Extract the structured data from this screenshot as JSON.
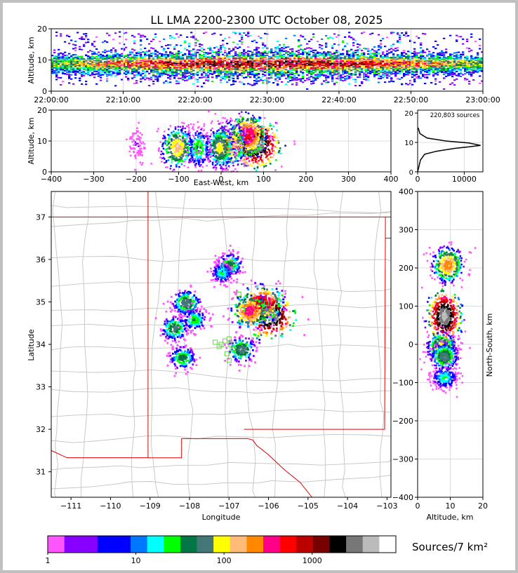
{
  "title": "LL LMA 2200-2300 UTC October 08, 2025",
  "time_panel": {
    "ylabel": "Altitude, km",
    "yticks": [
      "0",
      "10",
      "20"
    ],
    "xticks": [
      "22:00:00",
      "22:10:00",
      "22:20:00",
      "22:30:00",
      "22:40:00",
      "22:50:00",
      "23:00:00"
    ]
  },
  "ew_panel": {
    "ylabel": "Altitude, km",
    "xlabel": "East-West, km",
    "yticks": [
      "0",
      "10",
      "20"
    ],
    "xticks": [
      "−400",
      "−300",
      "−200",
      "−100",
      "0",
      "100",
      "200",
      "300",
      "400"
    ]
  },
  "hist_panel": {
    "annotation": "220,803 sources",
    "yticks": [
      "0",
      "10",
      "20"
    ],
    "xticks": [
      "0",
      "10000"
    ]
  },
  "map_panel": {
    "xlabel": "Longitude",
    "ylabel": "Latitude",
    "xticks": [
      "−111",
      "−110",
      "−109",
      "−108",
      "−107",
      "−106",
      "−105",
      "−104",
      "−103"
    ],
    "yticks": [
      "31",
      "32",
      "33",
      "34",
      "35",
      "36",
      "37"
    ]
  },
  "ns_panel": {
    "xlabel": "Altitude, km",
    "ylabel": "North-South, km",
    "xticks": [
      "0",
      "10",
      "20"
    ],
    "yticks": [
      "400",
      "300",
      "200",
      "100",
      "0",
      "−100",
      "−200",
      "−300",
      "−400"
    ]
  },
  "colorbar": {
    "label": "Sources/7 km²",
    "ticks": [
      "1",
      "10",
      "100",
      "1000"
    ],
    "colors": [
      "#ff55ff",
      "#8800ff",
      "#8800ff",
      "#0000ff",
      "#0000ff",
      "#0077ff",
      "#00ffff",
      "#00ff00",
      "#007744",
      "#447777",
      "#ffff00",
      "#ffbb77",
      "#ff8800",
      "#ff0088",
      "#ff0000",
      "#bb0000",
      "#770000",
      "#000000",
      "#777777",
      "#bbbbbb",
      "#ffffff"
    ]
  },
  "chart_data": [
    {
      "type": "heatmap",
      "title": "LL LMA 2200-2300 UTC October 08, 2025",
      "x": "time UTC",
      "xlim": [
        "22:00:00",
        "23:00:00"
      ],
      "ylabel": "Altitude, km",
      "ylim": [
        0,
        20
      ],
      "description_values": {
        "densest_altitude_km": [
          6,
          12
        ]
      }
    },
    {
      "type": "heatmap",
      "xlabel": "East-West, km",
      "ylabel": "Altitude, km",
      "xlim": [
        -400,
        400
      ],
      "ylim": [
        0,
        20
      ],
      "cells": [
        {
          "x": 80,
          "y": 9,
          "density": 3000
        },
        {
          "x": 60,
          "y": 12,
          "density": 400
        },
        {
          "x": 15,
          "y": 9,
          "density": 200
        },
        {
          "x": -5,
          "y": 8,
          "density": 80
        },
        {
          "x": -55,
          "y": 8,
          "density": 30
        },
        {
          "x": -105,
          "y": 8,
          "density": 120
        },
        {
          "x": -200,
          "y": 9,
          "density": 2
        }
      ]
    },
    {
      "type": "line",
      "annotation": "220,803 sources",
      "xlim": [
        0,
        14000
      ],
      "ylim": [
        0,
        21
      ],
      "x": [
        0,
        300,
        600,
        1500,
        4000,
        8000,
        11000,
        13500,
        11000,
        6000,
        2000,
        500,
        100
      ],
      "y": [
        0,
        2,
        4,
        6,
        7,
        8,
        8.5,
        9,
        9.8,
        10.5,
        11.5,
        13,
        15
      ]
    },
    {
      "type": "heatmap",
      "xlabel": "Longitude",
      "ylabel": "Latitude",
      "xlim": [
        -111.5,
        -102.9
      ],
      "ylim": [
        30.4,
        37.6
      ],
      "cells": [
        {
          "x": -106.0,
          "y": 34.7,
          "density": 3000
        },
        {
          "x": -106.2,
          "y": 35.0,
          "density": 600
        },
        {
          "x": -106.5,
          "y": 34.8,
          "density": 300
        },
        {
          "x": -107.0,
          "y": 35.9,
          "density": 40
        },
        {
          "x": -107.2,
          "y": 35.7,
          "density": 20
        },
        {
          "x": -108.1,
          "y": 35.0,
          "density": 60
        },
        {
          "x": -108.4,
          "y": 34.4,
          "density": 50
        },
        {
          "x": -107.9,
          "y": 34.6,
          "density": 30
        },
        {
          "x": -108.2,
          "y": 33.7,
          "density": 40
        },
        {
          "x": -106.7,
          "y": 33.9,
          "density": 60
        }
      ]
    },
    {
      "type": "heatmap",
      "xlabel": "Altitude, km",
      "ylabel": "North-South, km",
      "xlim": [
        0,
        20
      ],
      "ylim": [
        -400,
        400
      ],
      "cells": [
        {
          "x": 8,
          "y": 75,
          "density": 3000
        },
        {
          "x": 9,
          "y": 210,
          "density": 200
        },
        {
          "x": 7,
          "y": -5,
          "density": 100
        },
        {
          "x": 8,
          "y": -30,
          "density": 60
        },
        {
          "x": 8,
          "y": -85,
          "density": 20
        }
      ]
    }
  ]
}
